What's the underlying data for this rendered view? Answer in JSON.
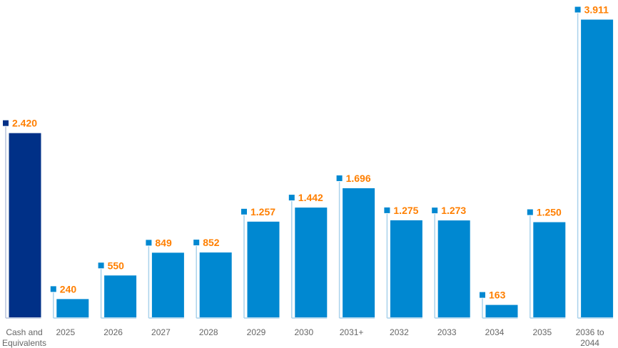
{
  "chart_data": {
    "type": "bar",
    "categories": [
      "Cash and Equivalents",
      "2025",
      "2026",
      "2027",
      "2028",
      "2029",
      "2030",
      "2031+",
      "2032",
      "2033",
      "2034",
      "2035",
      "2036 to 2044"
    ],
    "category_lines": [
      [
        "Cash and",
        "Equivalents"
      ],
      [
        "2025"
      ],
      [
        "2026"
      ],
      [
        "2027"
      ],
      [
        "2028"
      ],
      [
        "2029"
      ],
      [
        "2030"
      ],
      [
        "2031+"
      ],
      [
        "2032"
      ],
      [
        "2033"
      ],
      [
        "2034"
      ],
      [
        "2035"
      ],
      [
        "2036 to",
        "2044"
      ]
    ],
    "values": [
      2420,
      240,
      550,
      849,
      852,
      1257,
      1442,
      1696,
      1275,
      1273,
      163,
      1250,
      3911
    ],
    "value_labels": [
      "2.420",
      "240",
      "550",
      "849",
      "852",
      "1.257",
      "1.442",
      "1.696",
      "1.275",
      "1.273",
      "163",
      "1.250",
      "3.911"
    ],
    "highlight_index": 0,
    "title": "",
    "xlabel": "",
    "ylabel": "",
    "ylim": [
      0,
      4000
    ],
    "grid": false,
    "colors": {
      "highlight": "#003087",
      "bar": "#0088d1",
      "label": "#ff7f00",
      "leader_highlight": "#b7c3dc",
      "leader": "#a9d2ec",
      "axis_text": "#666666"
    }
  }
}
